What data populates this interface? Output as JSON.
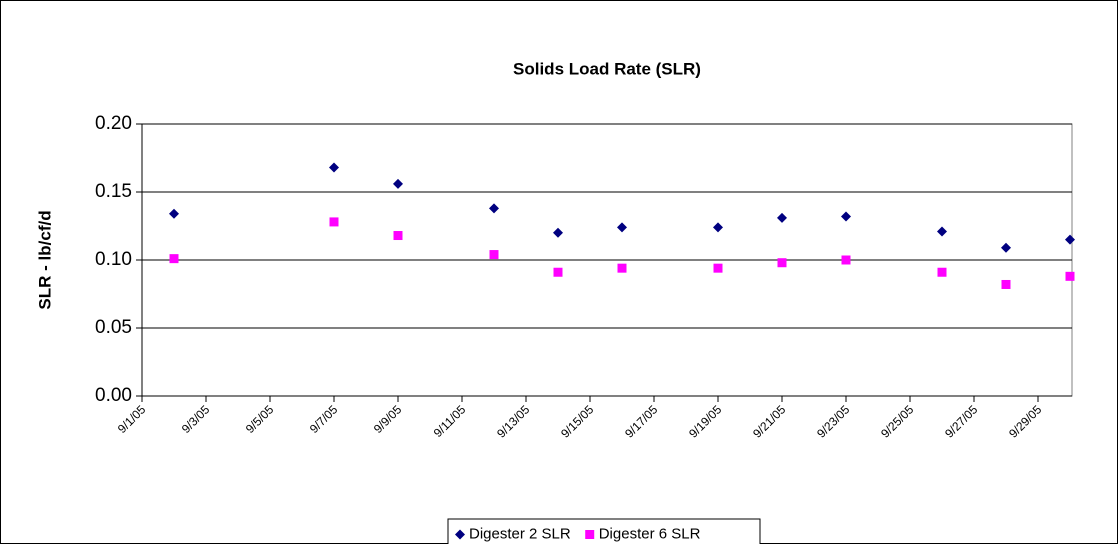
{
  "chart_data": {
    "type": "scatter",
    "title": "Solids Load Rate (SLR)",
    "y_label": "SLR - lb/cf/d",
    "xlim": [
      "9/1/05",
      "9/30/05"
    ],
    "xticks": [
      "9/1/05",
      "9/3/05",
      "9/5/05",
      "9/7/05",
      "9/9/05",
      "9/11/05",
      "9/13/05",
      "9/15/05",
      "9/17/05",
      "9/19/05",
      "9/21/05",
      "9/23/05",
      "9/25/05",
      "9/27/05",
      "9/29/05"
    ],
    "ylim": [
      0,
      0.2
    ],
    "yticks": [
      {
        "value": 0,
        "label": "0.00"
      },
      {
        "value": 0.05,
        "label": "0.05"
      },
      {
        "value": 0.1,
        "label": "0.10"
      },
      {
        "value": 0.15,
        "label": "0.15"
      },
      {
        "value": 0.2,
        "label": "0.20"
      }
    ],
    "grid": true,
    "legend": "bottom",
    "x": [
      "9/2/05",
      "9/7/05",
      "9/9/05",
      "9/12/05",
      "9/14/05",
      "9/16/05",
      "9/19/05",
      "9/21/05",
      "9/23/05",
      "9/26/05",
      "9/28/05",
      "9/30/05"
    ],
    "series": [
      {
        "name": "Digester 2 SLR",
        "color": "#000080",
        "marker": "diamond",
        "values": [
          0.134,
          0.168,
          0.156,
          0.138,
          0.12,
          0.124,
          0.124,
          0.131,
          0.132,
          0.121,
          0.109,
          0.115
        ]
      },
      {
        "name": "Digester 6 SLR",
        "color": "#ff00ff",
        "marker": "square",
        "values": [
          0.101,
          0.128,
          0.118,
          0.104,
          0.091,
          0.094,
          0.094,
          0.098,
          0.1,
          0.091,
          0.082,
          0.088
        ]
      }
    ]
  }
}
